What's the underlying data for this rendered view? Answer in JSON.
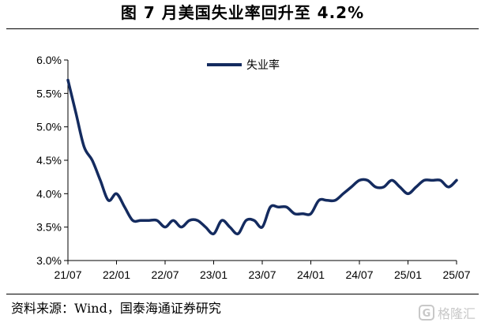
{
  "title": "图    7 月美国失业率回升至 4.2%",
  "source": "资料来源：Wind，国泰海通证券研究",
  "watermark": "格隆汇",
  "chart_data": {
    "type": "line",
    "ylim": [
      3.0,
      6.0
    ],
    "y_ticks": [
      "3.0%",
      "3.5%",
      "4.0%",
      "4.5%",
      "5.0%",
      "5.5%",
      "6.0%"
    ],
    "x_ticks": [
      "21/07",
      "22/01",
      "22/07",
      "23/01",
      "23/07",
      "24/01",
      "24/07",
      "25/01",
      "25/07"
    ],
    "legend_position": "top-center",
    "series": [
      {
        "name": "失业率",
        "color": "#142b5f",
        "x": [
          "21/07",
          "21/08",
          "21/09",
          "21/10",
          "21/11",
          "21/12",
          "22/01",
          "22/02",
          "22/03",
          "22/04",
          "22/05",
          "22/06",
          "22/07",
          "22/08",
          "22/09",
          "22/10",
          "22/11",
          "22/12",
          "23/01",
          "23/02",
          "23/03",
          "23/04",
          "23/05",
          "23/06",
          "23/07",
          "23/08",
          "23/09",
          "23/10",
          "23/11",
          "23/12",
          "24/01",
          "24/02",
          "24/03",
          "24/04",
          "24/05",
          "24/06",
          "24/07",
          "24/08",
          "24/09",
          "24/10",
          "24/11",
          "24/12",
          "25/01",
          "25/02",
          "25/03",
          "25/04",
          "25/05",
          "25/06",
          "25/07"
        ],
        "values": [
          5.7,
          5.2,
          4.7,
          4.5,
          4.2,
          3.9,
          4.0,
          3.8,
          3.6,
          3.6,
          3.6,
          3.6,
          3.5,
          3.6,
          3.5,
          3.6,
          3.6,
          3.5,
          3.4,
          3.6,
          3.5,
          3.4,
          3.6,
          3.6,
          3.5,
          3.8,
          3.8,
          3.8,
          3.7,
          3.7,
          3.7,
          3.9,
          3.9,
          3.9,
          4.0,
          4.1,
          4.2,
          4.2,
          4.1,
          4.1,
          4.2,
          4.1,
          4.0,
          4.1,
          4.2,
          4.2,
          4.2,
          4.1,
          4.2
        ]
      }
    ]
  }
}
